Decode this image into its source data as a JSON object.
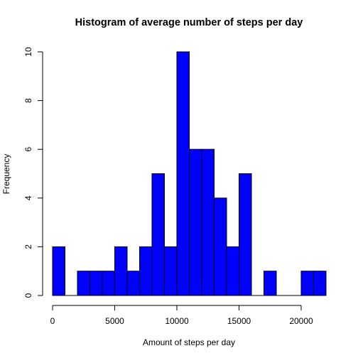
{
  "chart_data": {
    "type": "bar",
    "title": "Histogram of average number of steps per day",
    "xlabel": "Amount of steps per day",
    "ylabel": "Frequency",
    "bar_color": "#0000FF",
    "bar_edge_color": "#000000",
    "bin_width": 1000,
    "bins": [
      {
        "start": 0,
        "end": 1000,
        "count": 2
      },
      {
        "start": 1000,
        "end": 2000,
        "count": 0
      },
      {
        "start": 2000,
        "end": 3000,
        "count": 1
      },
      {
        "start": 3000,
        "end": 4000,
        "count": 1
      },
      {
        "start": 4000,
        "end": 5000,
        "count": 1
      },
      {
        "start": 5000,
        "end": 6000,
        "count": 2
      },
      {
        "start": 6000,
        "end": 7000,
        "count": 1
      },
      {
        "start": 7000,
        "end": 8000,
        "count": 2
      },
      {
        "start": 8000,
        "end": 9000,
        "count": 5
      },
      {
        "start": 9000,
        "end": 10000,
        "count": 2
      },
      {
        "start": 10000,
        "end": 11000,
        "count": 10
      },
      {
        "start": 11000,
        "end": 12000,
        "count": 6
      },
      {
        "start": 12000,
        "end": 13000,
        "count": 6
      },
      {
        "start": 13000,
        "end": 14000,
        "count": 4
      },
      {
        "start": 14000,
        "end": 15000,
        "count": 2
      },
      {
        "start": 15000,
        "end": 16000,
        "count": 5
      },
      {
        "start": 16000,
        "end": 17000,
        "count": 0
      },
      {
        "start": 17000,
        "end": 18000,
        "count": 1
      },
      {
        "start": 18000,
        "end": 19000,
        "count": 0
      },
      {
        "start": 19000,
        "end": 20000,
        "count": 0
      },
      {
        "start": 20000,
        "end": 21000,
        "count": 1
      },
      {
        "start": 21000,
        "end": 22000,
        "count": 1
      }
    ],
    "xlim": [
      0,
      22000
    ],
    "ylim": [
      0,
      10
    ],
    "x_ticks": [
      0,
      5000,
      10000,
      15000,
      20000
    ],
    "y_ticks": [
      0,
      2,
      4,
      6,
      8,
      10
    ],
    "grid": false,
    "legend": "none"
  }
}
